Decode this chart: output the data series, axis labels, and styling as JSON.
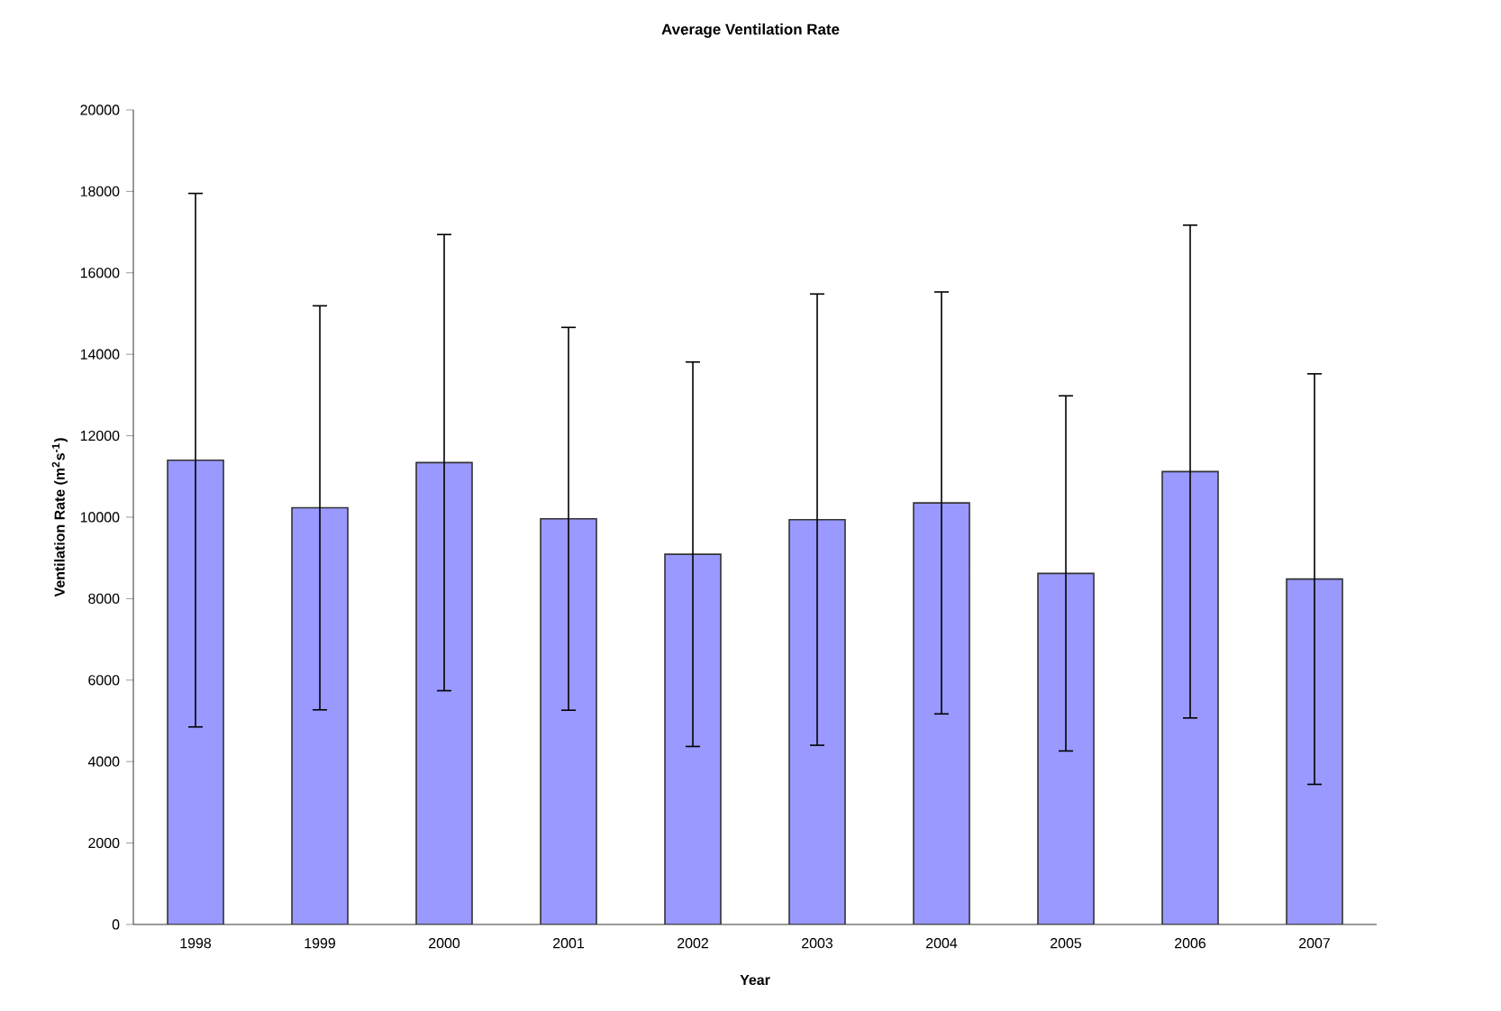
{
  "chart_data": {
    "type": "bar",
    "title": "Average Ventilation Rate",
    "xlabel": "Year",
    "ylabel": "Ventilation Rate (m$^{2}$s$^{-1}$)",
    "categories": [
      "1998",
      "1999",
      "2000",
      "2001",
      "2002",
      "2003",
      "2004",
      "2005",
      "2006",
      "2007"
    ],
    "values": [
      11400,
      10230,
      11340,
      9960,
      9090,
      9940,
      10350,
      8620,
      11120,
      8480
    ],
    "errors": [
      6550,
      4960,
      5600,
      4700,
      4720,
      5540,
      5180,
      4360,
      6050,
      5040
    ],
    "color": "#9999ff",
    "ylim": [
      0,
      20000
    ],
    "yticks": [
      0,
      2000,
      4000,
      6000,
      8000,
      10000,
      12000,
      14000,
      16000,
      18000,
      20000
    ],
    "grid": false
  }
}
